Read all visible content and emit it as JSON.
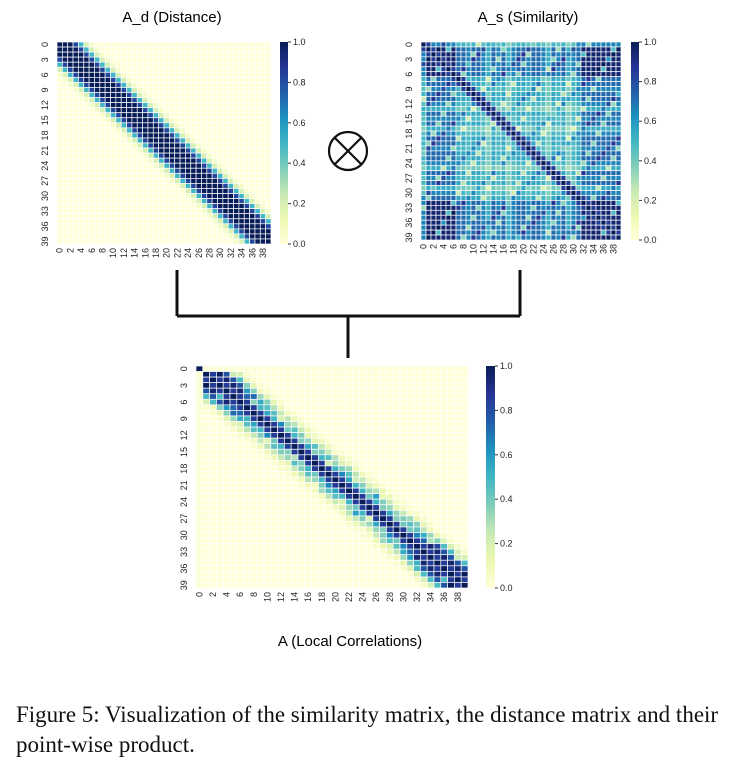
{
  "figure": {
    "caption": "Figure 5: Visualization of the similarity matrix, the distance matrix and their point-wise product.",
    "operator_symbol": "⊗"
  },
  "chart_data": [
    {
      "type": "heatmap",
      "title": "A_d (Distance)",
      "x_tick_labels": [
        "0",
        "2",
        "4",
        "6",
        "8",
        "10",
        "12",
        "14",
        "16",
        "18",
        "20",
        "22",
        "24",
        "26",
        "28",
        "30",
        "32",
        "34",
        "36",
        "38"
      ],
      "y_tick_labels": [
        "0",
        "3",
        "6",
        "9",
        "12",
        "15",
        "18",
        "21",
        "24",
        "27",
        "30",
        "33",
        "36",
        "39"
      ],
      "colorbar_ticks": [
        "0.0",
        "0.2",
        "0.4",
        "0.6",
        "0.8",
        "1.0"
      ],
      "value_range": [
        0,
        1
      ],
      "colormap": [
        "#ffffd9",
        "#edf8b1",
        "#c7e9b4",
        "#7fcdbb",
        "#41b6c4",
        "#1d91c0",
        "#225ea8",
        "#253494",
        "#081d58"
      ],
      "size": 40,
      "pattern": "banded decay around the diagonal; 1.0 at |i-j|<=2, ~0.8 at |i-j|=3, ~0.5 at |i-j|=4, ~0.2 at |i-j|=5, ~0 beyond"
    },
    {
      "type": "heatmap",
      "title": "A_s (Similarity)",
      "x_tick_labels": [
        "0",
        "2",
        "4",
        "6",
        "8",
        "10",
        "12",
        "14",
        "16",
        "18",
        "20",
        "22",
        "24",
        "26",
        "28",
        "30",
        "32",
        "34",
        "36",
        "38"
      ],
      "y_tick_labels": [
        "0",
        "3",
        "6",
        "9",
        "12",
        "15",
        "18",
        "21",
        "24",
        "27",
        "30",
        "33",
        "36",
        "39"
      ],
      "colorbar_ticks": [
        "0.0",
        "0.2",
        "0.4",
        "0.6",
        "0.8",
        "1.0"
      ],
      "value_range": [
        0,
        1
      ],
      "colormap": [
        "#ffffd9",
        "#edf8b1",
        "#c7e9b4",
        "#7fcdbb",
        "#41b6c4",
        "#1d91c0",
        "#225ea8",
        "#253494",
        "#081d58"
      ],
      "size": 40,
      "pattern": "dense block structure; high similarity (0.8-1.0) among indices 1-6 and 32-39, medium (0.3-0.6) elsewhere, 1.0 on the diagonal"
    },
    {
      "type": "heatmap",
      "title": "A (Local Correlations)",
      "x_tick_labels": [
        "0",
        "2",
        "4",
        "6",
        "8",
        "10",
        "12",
        "14",
        "16",
        "18",
        "20",
        "22",
        "24",
        "26",
        "28",
        "30",
        "32",
        "34",
        "36",
        "38"
      ],
      "y_tick_labels": [
        "0",
        "3",
        "6",
        "9",
        "12",
        "15",
        "18",
        "21",
        "24",
        "27",
        "30",
        "33",
        "36",
        "39"
      ],
      "colorbar_ticks": [
        "0.0",
        "0.2",
        "0.4",
        "0.6",
        "0.8",
        "1.0"
      ],
      "value_range": [
        0,
        1
      ],
      "colormap": [
        "#ffffd9",
        "#edf8b1",
        "#c7e9b4",
        "#7fcdbb",
        "#41b6c4",
        "#1d91c0",
        "#225ea8",
        "#253494",
        "#081d58"
      ],
      "size": 40,
      "pattern": "point-wise product A_d * A_s; narrow diagonal band, strongest at indices 1-6 and 31-38"
    }
  ]
}
